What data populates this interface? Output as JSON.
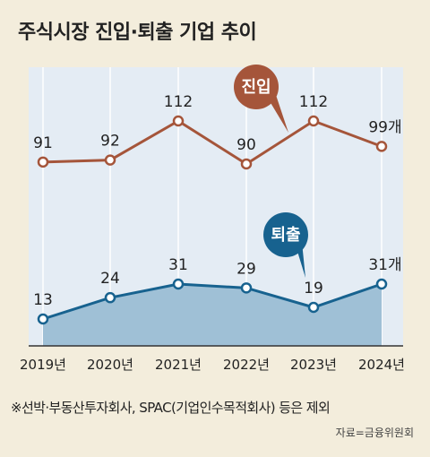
{
  "title": "주식시장 진입·퇴출 기업 추이",
  "chart_data": {
    "type": "line",
    "categories": [
      "2019년",
      "2020년",
      "2021년",
      "2022년",
      "2023년",
      "2024년"
    ],
    "series": [
      {
        "name": "진입",
        "values": [
          91,
          92,
          112,
          90,
          112,
          99
        ],
        "labels": [
          "91",
          "92",
          "112",
          "90",
          "112",
          "99개"
        ],
        "color": "#a5553a"
      },
      {
        "name": "퇴출",
        "values": [
          13,
          24,
          31,
          29,
          19,
          31
        ],
        "labels": [
          "13",
          "24",
          "31",
          "29",
          "19",
          "31개"
        ],
        "color": "#17628f"
      }
    ],
    "colors": {
      "background": "#f3eddc",
      "panel": "#e4ecf4",
      "area_bottom": "#9fc0d6"
    }
  },
  "note": "※선박·부동산투자회사, SPAC(기업인수목적회사) 등은 제외",
  "source": "자료=금융위원회"
}
